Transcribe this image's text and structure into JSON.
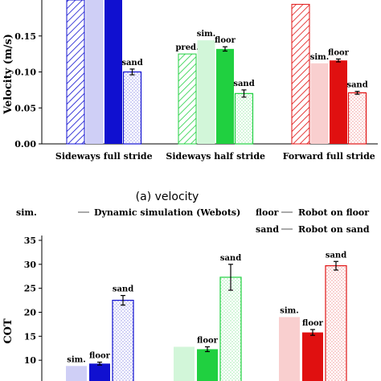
{
  "caption": "(a) velocity",
  "legend": [
    {
      "key": "sim.",
      "text": "Dynamic simulation (Webots)"
    },
    {
      "key": "floor",
      "text": "Robot on floor"
    },
    {
      "key": "sand",
      "text": "Robot on sand"
    }
  ],
  "colors": {
    "sideways_full": "#1010d0",
    "sideways_half": "#20d040",
    "forward_full": "#e01010"
  },
  "chart_data": [
    {
      "type": "bar",
      "ylabel": "Velocity (m/s)",
      "ylim": [
        0,
        0.2
      ],
      "yticks": [
        "0.00",
        "0.05",
        "0.10",
        "0.15"
      ],
      "categories": [
        "Sideways full stride",
        "Sideways half stride",
        "Forward full stride"
      ],
      "groups": [
        {
          "category": "Sideways full stride",
          "color": "#1010d0",
          "bars": [
            {
              "kind": "pred",
              "value": 0.2,
              "label": ""
            },
            {
              "kind": "sim",
              "value": 0.2,
              "label": ""
            },
            {
              "kind": "floor",
              "value": 0.2,
              "label": ""
            },
            {
              "kind": "sand",
              "value": 0.1,
              "err": 0.004,
              "label": "sand"
            }
          ]
        },
        {
          "category": "Sideways half stride",
          "color": "#20d040",
          "bars": [
            {
              "kind": "pred",
              "value": 0.125,
              "label": "pred."
            },
            {
              "kind": "sim",
              "value": 0.144,
              "label": "sim."
            },
            {
              "kind": "floor",
              "value": 0.132,
              "err": 0.003,
              "label": "floor"
            },
            {
              "kind": "sand",
              "value": 0.07,
              "err": 0.005,
              "label": "sand"
            }
          ]
        },
        {
          "category": "Forward full stride",
          "color": "#e01010",
          "bars": [
            {
              "kind": "pred",
              "value": 0.194,
              "label": ""
            },
            {
              "kind": "sim",
              "value": 0.112,
              "label": "sim."
            },
            {
              "kind": "floor",
              "value": 0.116,
              "err": 0.002,
              "label": "floor"
            },
            {
              "kind": "sand",
              "value": 0.071,
              "err": 0.002,
              "label": "sand"
            }
          ]
        }
      ]
    },
    {
      "type": "bar",
      "ylabel": "COT",
      "ylim": [
        5,
        35
      ],
      "yticks": [
        "10",
        "15",
        "20",
        "25",
        "30",
        "35"
      ],
      "categories": [
        "Sideways full stride",
        "Sideways half stride",
        "Forward full stride"
      ],
      "groups": [
        {
          "category": "Sideways full stride",
          "color": "#1010d0",
          "bars": [
            {
              "kind": "sim",
              "value": 8.8,
              "label": "sim."
            },
            {
              "kind": "floor",
              "value": 9.3,
              "err": 0.3,
              "label": "floor"
            },
            {
              "kind": "sand",
              "value": 22.5,
              "err": 1.0,
              "label": "sand"
            }
          ]
        },
        {
          "category": "Sideways half stride",
          "color": "#20d040",
          "bars": [
            {
              "kind": "sim",
              "value": 12.8,
              "label": ""
            },
            {
              "kind": "floor",
              "value": 12.3,
              "err": 0.5,
              "label": "floor"
            },
            {
              "kind": "sand",
              "value": 27.3,
              "err": 2.7,
              "label": "sand"
            }
          ]
        },
        {
          "category": "Forward full stride",
          "color": "#e01010",
          "bars": [
            {
              "kind": "sim",
              "value": 19.0,
              "label": "sim."
            },
            {
              "kind": "floor",
              "value": 15.8,
              "err": 0.6,
              "label": "floor"
            },
            {
              "kind": "sand",
              "value": 29.7,
              "err": 0.9,
              "label": "sand"
            }
          ]
        }
      ]
    }
  ]
}
